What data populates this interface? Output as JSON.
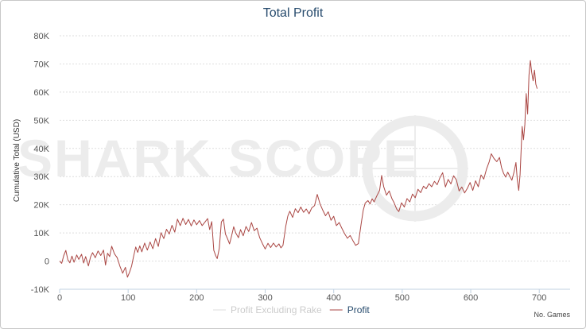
{
  "chart_data": {
    "type": "line",
    "title": "Total Profit",
    "ylabel": "Cumulative Total (USD)",
    "xlabel": "No. Games",
    "xlim": [
      0,
      745
    ],
    "ylim": [
      -10000,
      80000
    ],
    "x_ticks": [
      "0",
      "100",
      "200",
      "300",
      "400",
      "500",
      "600",
      "700"
    ],
    "y_ticks": [
      "-10K",
      "0",
      "10K",
      "20K",
      "30K",
      "40K",
      "50K",
      "60K",
      "70K",
      "80K"
    ],
    "grid": true,
    "legend_position": "bottom-center",
    "watermark": "SHARK SCOPE",
    "series": [
      {
        "name": "Profit Excluding Rake",
        "color": "#dddddd",
        "points": []
      },
      {
        "name": "Profit",
        "color": "#aa4643",
        "points": [
          [
            0,
            0
          ],
          [
            3,
            -800
          ],
          [
            6,
            2000
          ],
          [
            9,
            3800
          ],
          [
            12,
            500
          ],
          [
            15,
            -600
          ],
          [
            18,
            1800
          ],
          [
            21,
            -400
          ],
          [
            25,
            2200
          ],
          [
            28,
            600
          ],
          [
            32,
            2400
          ],
          [
            35,
            -700
          ],
          [
            38,
            1600
          ],
          [
            42,
            -1700
          ],
          [
            45,
            1400
          ],
          [
            48,
            3000
          ],
          [
            52,
            1200
          ],
          [
            56,
            3600
          ],
          [
            60,
            2000
          ],
          [
            64,
            3900
          ],
          [
            67,
            -1400
          ],
          [
            70,
            2800
          ],
          [
            73,
            1600
          ],
          [
            76,
            5300
          ],
          [
            80,
            2600
          ],
          [
            84,
            1200
          ],
          [
            88,
            -1800
          ],
          [
            92,
            -4300
          ],
          [
            96,
            -2200
          ],
          [
            99,
            -5700
          ],
          [
            102,
            -4000
          ],
          [
            105,
            -1800
          ],
          [
            108,
            1800
          ],
          [
            111,
            5000
          ],
          [
            114,
            3100
          ],
          [
            117,
            5400
          ],
          [
            120,
            3300
          ],
          [
            124,
            6400
          ],
          [
            128,
            3900
          ],
          [
            132,
            6800
          ],
          [
            136,
            4400
          ],
          [
            140,
            8000
          ],
          [
            144,
            5200
          ],
          [
            148,
            10100
          ],
          [
            152,
            8000
          ],
          [
            156,
            11300
          ],
          [
            160,
            9600
          ],
          [
            164,
            12700
          ],
          [
            168,
            10300
          ],
          [
            172,
            14900
          ],
          [
            176,
            12600
          ],
          [
            180,
            15200
          ],
          [
            184,
            13000
          ],
          [
            188,
            14800
          ],
          [
            192,
            12500
          ],
          [
            196,
            14600
          ],
          [
            200,
            12900
          ],
          [
            204,
            14400
          ],
          [
            208,
            12600
          ],
          [
            212,
            13800
          ],
          [
            216,
            15100
          ],
          [
            219,
            11200
          ],
          [
            222,
            14000
          ],
          [
            225,
            3800
          ],
          [
            228,
            1800
          ],
          [
            230,
            900
          ],
          [
            233,
            4600
          ],
          [
            236,
            13900
          ],
          [
            239,
            14900
          ],
          [
            242,
            9600
          ],
          [
            245,
            8000
          ],
          [
            248,
            6100
          ],
          [
            251,
            9000
          ],
          [
            254,
            12200
          ],
          [
            257,
            10000
          ],
          [
            261,
            8300
          ],
          [
            264,
            11200
          ],
          [
            268,
            9000
          ],
          [
            272,
            12300
          ],
          [
            276,
            10500
          ],
          [
            280,
            13700
          ],
          [
            284,
            10800
          ],
          [
            288,
            11700
          ],
          [
            292,
            8300
          ],
          [
            296,
            6200
          ],
          [
            300,
            4300
          ],
          [
            304,
            6300
          ],
          [
            308,
            4800
          ],
          [
            312,
            6400
          ],
          [
            316,
            5000
          ],
          [
            320,
            6100
          ],
          [
            323,
            4700
          ],
          [
            326,
            5600
          ],
          [
            330,
            12400
          ],
          [
            333,
            16000
          ],
          [
            336,
            17700
          ],
          [
            340,
            15500
          ],
          [
            344,
            18600
          ],
          [
            348,
            17200
          ],
          [
            352,
            19200
          ],
          [
            356,
            17300
          ],
          [
            360,
            18500
          ],
          [
            364,
            16800
          ],
          [
            368,
            18900
          ],
          [
            372,
            19700
          ],
          [
            376,
            23700
          ],
          [
            380,
            20300
          ],
          [
            384,
            18100
          ],
          [
            388,
            16100
          ],
          [
            392,
            17500
          ],
          [
            396,
            14500
          ],
          [
            400,
            15900
          ],
          [
            404,
            12600
          ],
          [
            408,
            13700
          ],
          [
            412,
            11600
          ],
          [
            416,
            9700
          ],
          [
            420,
            8100
          ],
          [
            424,
            9100
          ],
          [
            428,
            7300
          ],
          [
            432,
            5600
          ],
          [
            436,
            6200
          ],
          [
            440,
            13200
          ],
          [
            443,
            18000
          ],
          [
            446,
            20600
          ],
          [
            450,
            21500
          ],
          [
            453,
            20300
          ],
          [
            456,
            22100
          ],
          [
            459,
            21000
          ],
          [
            463,
            23200
          ],
          [
            467,
            25100
          ],
          [
            470,
            30400
          ],
          [
            473,
            26400
          ],
          [
            477,
            23400
          ],
          [
            481,
            24900
          ],
          [
            485,
            22200
          ],
          [
            488,
            20800
          ],
          [
            492,
            18400
          ],
          [
            495,
            17600
          ],
          [
            499,
            20700
          ],
          [
            503,
            19200
          ],
          [
            507,
            22200
          ],
          [
            511,
            21000
          ],
          [
            515,
            23800
          ],
          [
            519,
            22500
          ],
          [
            523,
            25500
          ],
          [
            527,
            24300
          ],
          [
            531,
            26600
          ],
          [
            535,
            25700
          ],
          [
            539,
            27500
          ],
          [
            543,
            26400
          ],
          [
            547,
            28300
          ],
          [
            551,
            27100
          ],
          [
            555,
            29600
          ],
          [
            559,
            31400
          ],
          [
            563,
            26300
          ],
          [
            567,
            29000
          ],
          [
            571,
            27400
          ],
          [
            575,
            30300
          ],
          [
            579,
            28800
          ],
          [
            583,
            24900
          ],
          [
            587,
            26300
          ],
          [
            591,
            24200
          ],
          [
            595,
            25800
          ],
          [
            599,
            27900
          ],
          [
            603,
            25100
          ],
          [
            607,
            28500
          ],
          [
            611,
            26400
          ],
          [
            615,
            30600
          ],
          [
            619,
            29100
          ],
          [
            623,
            32700
          ],
          [
            627,
            35300
          ],
          [
            630,
            38100
          ],
          [
            634,
            36400
          ],
          [
            638,
            35300
          ],
          [
            642,
            36800
          ],
          [
            645,
            33200
          ],
          [
            648,
            31100
          ],
          [
            651,
            29800
          ],
          [
            654,
            31600
          ],
          [
            657,
            30100
          ],
          [
            660,
            28700
          ],
          [
            663,
            31400
          ],
          [
            666,
            35000
          ],
          [
            668,
            28800
          ],
          [
            670,
            25100
          ],
          [
            672,
            30800
          ],
          [
            675,
            47800
          ],
          [
            677,
            43100
          ],
          [
            679,
            48500
          ],
          [
            681,
            59500
          ],
          [
            683,
            52200
          ],
          [
            685,
            66000
          ],
          [
            687,
            71200
          ],
          [
            689,
            67000
          ],
          [
            691,
            64000
          ],
          [
            693,
            67800
          ],
          [
            695,
            62800
          ],
          [
            697,
            61200
          ]
        ]
      }
    ]
  }
}
